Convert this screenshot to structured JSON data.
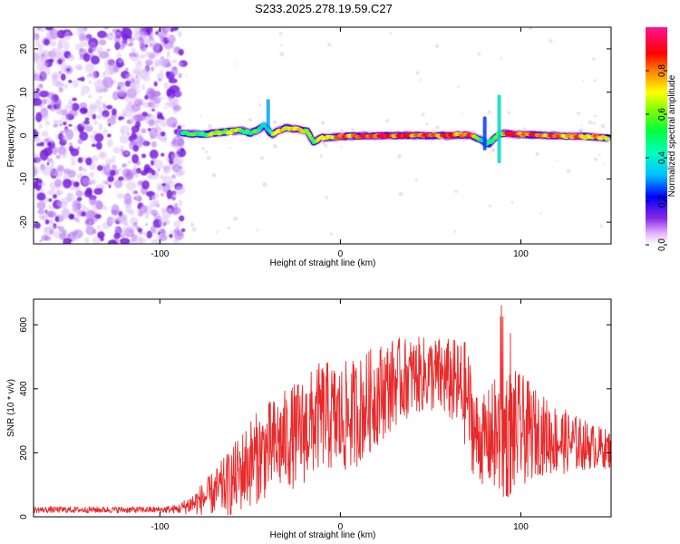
{
  "title": "S233.2025.278.19.59.C27",
  "colors": {
    "snr_line": "#e8292a",
    "frame": "#000000",
    "noise_purple": "#7a1fe0"
  },
  "chart_data": [
    {
      "type": "heatmap",
      "name": "spectrogram",
      "xlabel": "Height of straight line (km)",
      "ylabel": "Frequency (Hz)",
      "xlim": [
        -170,
        150
      ],
      "ylim": [
        -25,
        25
      ],
      "xticks": [
        -100,
        0,
        100
      ],
      "yticks": [
        -20,
        -10,
        0,
        10,
        20
      ],
      "grid": false,
      "colorbar": {
        "label": "Normalized spectral amplitude",
        "range": [
          0,
          1
        ],
        "ticks": [
          "0.0",
          "0.2",
          "0.4",
          "0.6",
          "0.8"
        ],
        "colormap": [
          "#ffffff",
          "#e8b8ff",
          "#8a2be2",
          "#0000ff",
          "#00bfff",
          "#00ff80",
          "#80ff00",
          "#ffff00",
          "#ff8000",
          "#ff0000",
          "#ff0060",
          "#ff1493"
        ]
      },
      "noise_region_x": [
        -170,
        -88
      ],
      "carrier_track": {
        "x": [
          -88,
          -75,
          -65,
          -55,
          -50,
          -45,
          -42,
          -38,
          -35,
          -30,
          -25,
          -18,
          -15,
          -10,
          0,
          20,
          40,
          60,
          72,
          78,
          82,
          88,
          92,
          100,
          120,
          140,
          148
        ],
        "freq": [
          0.5,
          0.3,
          0.8,
          1.2,
          0.5,
          1.5,
          2.5,
          0.2,
          1.0,
          1.8,
          1.5,
          1.0,
          -1.5,
          -0.5,
          -0.2,
          0.0,
          0.0,
          0.0,
          0.2,
          -1.0,
          -2.0,
          0.5,
          0.5,
          0.2,
          0.0,
          -0.3,
          -0.5
        ],
        "amp": [
          0.5,
          0.55,
          0.65,
          0.6,
          0.5,
          0.5,
          0.45,
          0.55,
          0.7,
          0.75,
          0.7,
          0.65,
          0.55,
          0.7,
          0.8,
          0.9,
          0.85,
          0.85,
          0.8,
          0.5,
          0.45,
          0.6,
          0.9,
          0.85,
          0.8,
          0.75,
          0.7
        ]
      }
    },
    {
      "type": "line",
      "name": "snr",
      "xlabel": "Height of straight line (km)",
      "ylabel": "SNR (10 * v/v)",
      "xlim": [
        -170,
        150
      ],
      "ylim": [
        0,
        680
      ],
      "xticks": [
        -100,
        0,
        100
      ],
      "yticks": [
        0,
        200,
        400,
        600
      ],
      "grid": false,
      "series": [
        {
          "name": "SNR",
          "envelope_x": [
            -170,
            -100,
            -90,
            -80,
            -70,
            -60,
            -50,
            -40,
            -30,
            -20,
            -10,
            0,
            10,
            20,
            30,
            40,
            50,
            60,
            70,
            75,
            80,
            90,
            100,
            110,
            120,
            130,
            140,
            150
          ],
          "envelope_mean": [
            22,
            22,
            24,
            45,
            75,
            110,
            170,
            210,
            240,
            270,
            320,
            300,
            330,
            380,
            420,
            440,
            445,
            430,
            380,
            250,
            240,
            260,
            270,
            260,
            240,
            230,
            220,
            210
          ],
          "envelope_spread": [
            10,
            10,
            14,
            40,
            70,
            110,
            140,
            150,
            160,
            170,
            170,
            180,
            170,
            160,
            140,
            120,
            120,
            130,
            170,
            150,
            140,
            220,
            180,
            130,
            110,
            90,
            70,
            60
          ]
        }
      ]
    }
  ]
}
